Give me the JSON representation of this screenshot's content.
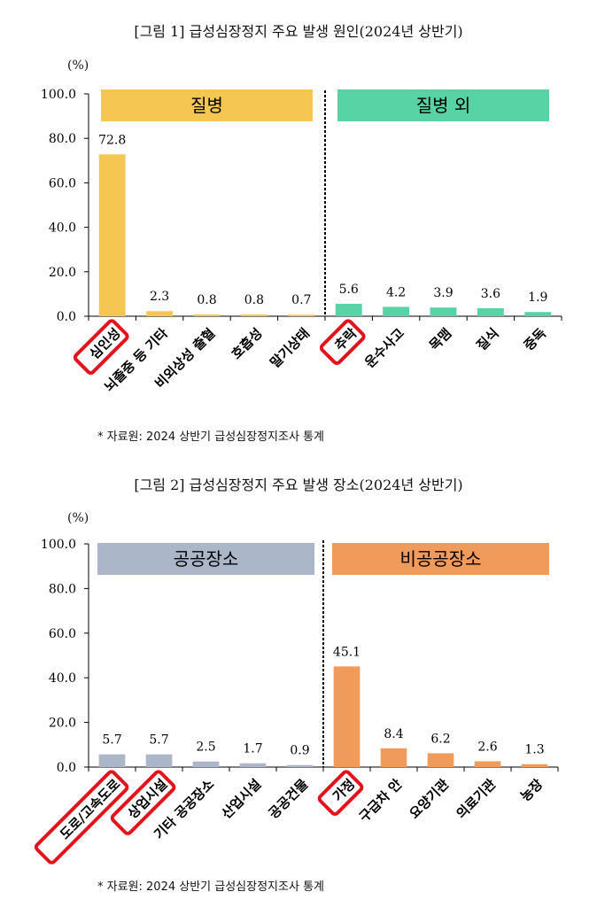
{
  "chart_data": [
    {
      "type": "bar",
      "title": "[그림 1] 급성심장정지 주요 발생 원인(2024년 상반기)",
      "unit_label": "(%)",
      "ylim": [
        0,
        100
      ],
      "y_ticks": [
        "100.0",
        "80.0",
        "60.0",
        "40.0",
        "20.0",
        "0.0"
      ],
      "y_tick_values": [
        100,
        80,
        60,
        40,
        20,
        0
      ],
      "groups": [
        {
          "label": "질병",
          "color": "#F5C752",
          "categories": [
            "심인성",
            "뇌졸중 등 기타",
            "비외상성 출혈",
            "호흡성",
            "말기상태"
          ],
          "values": [
            72.8,
            2.3,
            0.8,
            0.8,
            0.7
          ],
          "value_labels": [
            "72.8",
            "2.3",
            "0.8",
            "0.8",
            "0.7"
          ],
          "highlighted": [
            true,
            false,
            false,
            false,
            false
          ]
        },
        {
          "label": "질병 외",
          "color": "#58D3A6",
          "categories": [
            "추락",
            "운수사고",
            "목맴",
            "질식",
            "중독"
          ],
          "values": [
            5.6,
            4.2,
            3.9,
            3.6,
            1.9
          ],
          "value_labels": [
            "5.6",
            "4.2",
            "3.9",
            "3.6",
            "1.9"
          ],
          "highlighted": [
            true,
            false,
            false,
            false,
            false
          ]
        }
      ],
      "source": "* 자료원: 2024 상반기 급성심장정지조사 통계"
    },
    {
      "type": "bar",
      "title": "[그림 2] 급성심장정지 주요 발생 장소(2024년 상반기)",
      "unit_label": "(%)",
      "ylim": [
        0,
        100
      ],
      "y_ticks": [
        "100.0",
        "80.0",
        "60.0",
        "40.0",
        "20.0",
        "0.0"
      ],
      "y_tick_values": [
        100,
        80,
        60,
        40,
        20,
        0
      ],
      "groups": [
        {
          "label": "공공장소",
          "color": "#ABB7C9",
          "categories": [
            "도로/고속도로",
            "상업시설",
            "기타 공공장소",
            "산업시설",
            "공공건물"
          ],
          "values": [
            5.7,
            5.7,
            2.5,
            1.7,
            0.9
          ],
          "value_labels": [
            "5.7",
            "5.7",
            "2.5",
            "1.7",
            "0.9"
          ],
          "highlighted": [
            true,
            true,
            false,
            false,
            false
          ]
        },
        {
          "label": "비공공장소",
          "color": "#F09A5C",
          "categories": [
            "가정",
            "구급차 안",
            "요양기관",
            "의료기관",
            "농장"
          ],
          "values": [
            45.1,
            8.4,
            6.2,
            2.6,
            1.3
          ],
          "value_labels": [
            "45.1",
            "8.4",
            "6.2",
            "2.6",
            "1.3"
          ],
          "highlighted": [
            true,
            false,
            false,
            false,
            false
          ]
        }
      ],
      "source": "* 자료원: 2024 상반기 급성심장정지조사 통계"
    }
  ]
}
